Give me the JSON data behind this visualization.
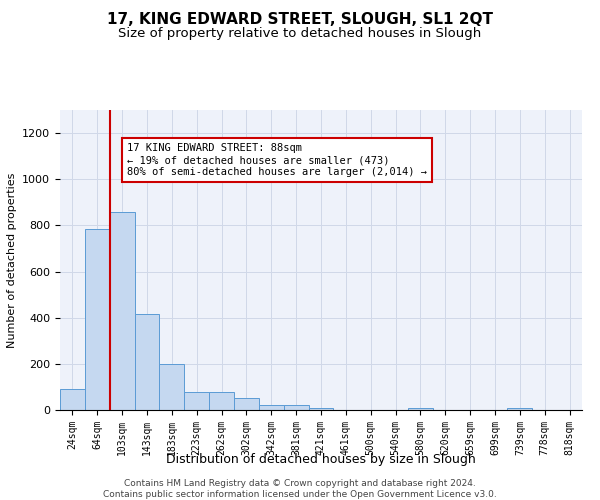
{
  "title": "17, KING EDWARD STREET, SLOUGH, SL1 2QT",
  "subtitle": "Size of property relative to detached houses in Slough",
  "xlabel": "Distribution of detached houses by size in Slough",
  "ylabel": "Number of detached properties",
  "categories": [
    "24sqm",
    "64sqm",
    "103sqm",
    "143sqm",
    "183sqm",
    "223sqm",
    "262sqm",
    "302sqm",
    "342sqm",
    "381sqm",
    "421sqm",
    "461sqm",
    "500sqm",
    "540sqm",
    "580sqm",
    "620sqm",
    "659sqm",
    "699sqm",
    "739sqm",
    "778sqm",
    "818sqm"
  ],
  "values": [
    90,
    785,
    860,
    415,
    200,
    80,
    80,
    50,
    20,
    20,
    10,
    0,
    0,
    0,
    10,
    0,
    0,
    0,
    10,
    0,
    0
  ],
  "bar_color": "#c5d8f0",
  "bar_edge_color": "#5b9bd5",
  "red_line_x": 1.5,
  "annotation_text": "17 KING EDWARD STREET: 88sqm\n← 19% of detached houses are smaller (473)\n80% of semi-detached houses are larger (2,014) →",
  "annotation_box_color": "#ffffff",
  "annotation_box_edge_color": "#cc0000",
  "ylim": [
    0,
    1300
  ],
  "yticks": [
    0,
    200,
    400,
    600,
    800,
    1000,
    1200
  ],
  "grid_color": "#d0d8e8",
  "background_color": "#eef2fa",
  "title_fontsize": 11,
  "subtitle_fontsize": 9.5,
  "xlabel_fontsize": 9,
  "ylabel_fontsize": 8,
  "footer_line1": "Contains HM Land Registry data © Crown copyright and database right 2024.",
  "footer_line2": "Contains public sector information licensed under the Open Government Licence v3.0."
}
